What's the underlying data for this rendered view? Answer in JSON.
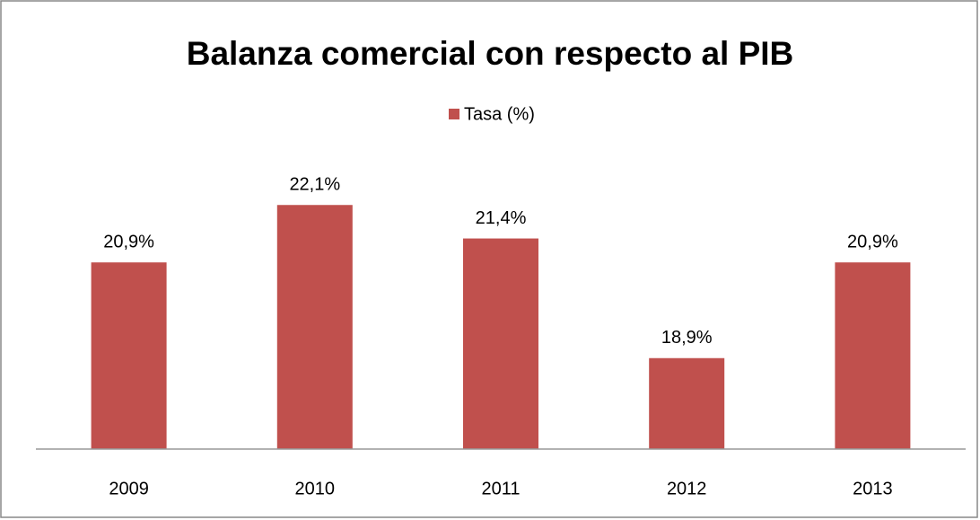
{
  "chart_data": {
    "type": "bar",
    "title": "Balanza comercial con respecto al PIB",
    "categories": [
      "2009",
      "2010",
      "2011",
      "2012",
      "2013"
    ],
    "series": [
      {
        "name": "Tasa (%)",
        "color": "#c0504d",
        "values": [
          20.9,
          22.1,
          21.4,
          18.9,
          20.9
        ],
        "value_labels": [
          "20,9%",
          "22,1%",
          "21,4%",
          "18,9%",
          "20,9%"
        ]
      }
    ],
    "ylim": [
      17,
      24
    ],
    "legend": "top"
  }
}
